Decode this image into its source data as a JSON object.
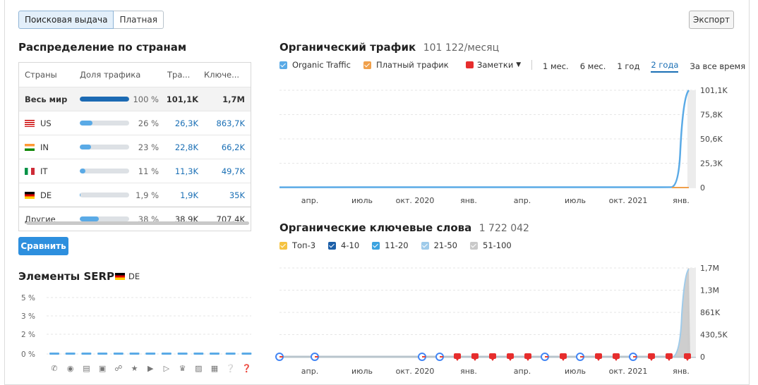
{
  "tabs": [
    {
      "label": "Поисковая выдача",
      "active": true
    },
    {
      "label": "Платная",
      "active": false
    }
  ],
  "export_label": "Экспорт",
  "distribution": {
    "title": "Распределение по странам",
    "headers": {
      "country": "Страны",
      "share": "Доля трафика",
      "traffic": "Тра...",
      "keywords": "Ключе..."
    },
    "rows": [
      {
        "name": "Весь мир",
        "flag": "",
        "share": 100,
        "pct": "100 %",
        "traffic": "101,1K",
        "keywords": "1,7M"
      },
      {
        "name": "US",
        "flag": "us",
        "share": 26,
        "pct": "26 %",
        "traffic": "26,3K",
        "keywords": "863,7K"
      },
      {
        "name": "IN",
        "flag": "in",
        "share": 23,
        "pct": "23 %",
        "traffic": "22,8K",
        "keywords": "66,2K"
      },
      {
        "name": "IT",
        "flag": "it",
        "share": 11,
        "pct": "11 %",
        "traffic": "11,3K",
        "keywords": "49,7K"
      },
      {
        "name": "DE",
        "flag": "de",
        "share": 1.9,
        "pct": "1,9 %",
        "traffic": "1,9K",
        "keywords": "35K"
      },
      {
        "name": "Другие",
        "flag": "",
        "share": 38,
        "pct": "38 %",
        "traffic": "38,9K",
        "keywords": "707,4K"
      }
    ]
  },
  "compare_label": "Сравнить",
  "serp": {
    "title": "Элементы SERP",
    "country": "DE",
    "y_ticks": [
      "5 %",
      "3 %",
      "2 %",
      "0 %"
    ],
    "icons": [
      "graduation-cap-icon",
      "map-pin-icon",
      "document-icon",
      "image-icon",
      "link-icon",
      "star-icon",
      "play-circle-icon",
      "video-icon",
      "crown-icon",
      "picture-icon",
      "news-icon",
      "question-icon",
      "help-icon"
    ]
  },
  "traffic": {
    "title": "Органический трафик",
    "value": "101 122/месяц",
    "legend": [
      {
        "label": "Organic Traffic",
        "color": "#5aaae6"
      },
      {
        "label": "Платный трафик",
        "color": "#f0a04b"
      }
    ],
    "notes_label": "Заметки",
    "periods": [
      "1 мес.",
      "6 мес.",
      "1 год",
      "2 года",
      "За все время"
    ],
    "active_period": "2 года",
    "y_ticks": [
      "101,1K",
      "75,8K",
      "50,6K",
      "25,3K",
      "0"
    ],
    "x_ticks": [
      "апр.",
      "июль",
      "окт. 2020",
      "янв.",
      "апр.",
      "июль",
      "окт. 2021",
      "янв."
    ]
  },
  "keywords": {
    "title": "Органические ключевые слова",
    "value": "1 722 042",
    "legend": [
      {
        "label": "Топ-3",
        "color": "#f5c342"
      },
      {
        "label": "4-10",
        "color": "#1c5fa8"
      },
      {
        "label": "11-20",
        "color": "#3ba3e0"
      },
      {
        "label": "21-50",
        "color": "#9fcbea"
      },
      {
        "label": "51-100",
        "color": "#c9c9c9"
      }
    ],
    "y_ticks": [
      "1,7M",
      "1,3M",
      "861K",
      "430,5K",
      "0"
    ],
    "x_ticks": [
      "апр.",
      "июль",
      "окт. 2020",
      "янв.",
      "апр.",
      "июль",
      "окт. 2021",
      "янв."
    ]
  },
  "chart_data": [
    {
      "type": "line",
      "title": "Органический трафик",
      "series": [
        {
          "name": "Organic Traffic",
          "x": [
            "апр.",
            "июль",
            "окт. 2020",
            "янв.",
            "апр.",
            "июль",
            "окт. 2021",
            "янв."
          ],
          "values": [
            400,
            300,
            700,
            500,
            600,
            500,
            600,
            101122
          ]
        },
        {
          "name": "Платный трафик",
          "x": [
            "апр.",
            "июль",
            "окт. 2020",
            "янв.",
            "апр.",
            "июль",
            "окт. 2021",
            "янв."
          ],
          "values": [
            0,
            0,
            0,
            0,
            0,
            0,
            0,
            0
          ]
        }
      ],
      "ylim": [
        0,
        101100
      ]
    },
    {
      "type": "area",
      "title": "Органические ключевые слова",
      "series": [
        {
          "name": "51-100",
          "x": [
            "апр.",
            "июль",
            "окт. 2020",
            "янв.",
            "апр.",
            "июль",
            "окт. 2021",
            "янв."
          ],
          "values": [
            0,
            0,
            0,
            0,
            0,
            0,
            0,
            1722042
          ]
        }
      ],
      "ylim": [
        0,
        1700000
      ]
    }
  ]
}
